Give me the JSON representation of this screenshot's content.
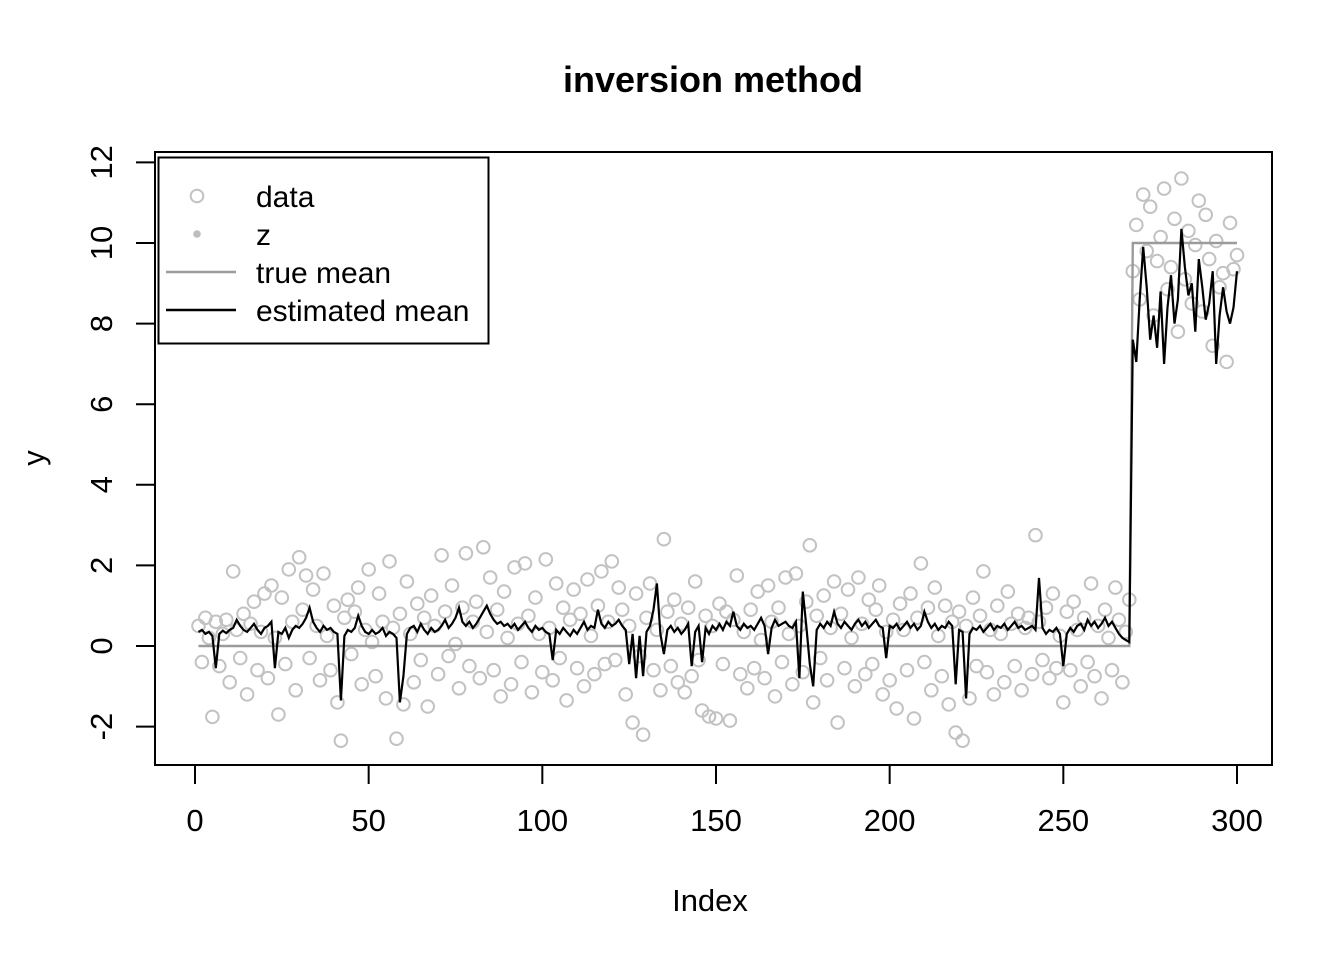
{
  "title": "inversion method",
  "axes": {
    "x_label": "Index",
    "y_label": "y",
    "x_ticks": [
      0,
      50,
      100,
      150,
      200,
      250,
      300
    ],
    "y_ticks": [
      -2,
      0,
      2,
      4,
      6,
      8,
      10,
      12
    ]
  },
  "colors": {
    "background": "#ffffff",
    "data_point": "#c2c2c2",
    "z_point": "#bdbdbd",
    "true_mean": "#9b9b9b",
    "estimated_mean": "#000000",
    "text": "#000000"
  },
  "legend": {
    "items": [
      {
        "label": "data",
        "marker": "open-circle",
        "color": "#c2c2c2"
      },
      {
        "label": "z",
        "marker": "filled-dot",
        "color": "#bdbdbd"
      },
      {
        "label": "true mean",
        "marker": "line",
        "color": "#9b9b9b"
      },
      {
        "label": "estimated mean",
        "marker": "line",
        "color": "#000000"
      }
    ]
  },
  "chart_data": {
    "type": "scatter",
    "title": "inversion method",
    "xlabel": "Index",
    "ylabel": "y",
    "xlim": [
      1,
      300
    ],
    "ylim": [
      -2.4,
      11.6
    ],
    "x_ticks": [
      0,
      50,
      100,
      150,
      200,
      250,
      300
    ],
    "y_ticks": [
      -2,
      0,
      2,
      4,
      6,
      8,
      10,
      12
    ],
    "grid": false,
    "legend_position": "top-left",
    "changepoint_index": 270,
    "series": [
      {
        "name": "data",
        "type": "scatter",
        "marker": "open-circle",
        "color": "#c2c2c2",
        "x_start": 1,
        "y": [
          0.5,
          -0.4,
          0.7,
          0.2,
          -1.76,
          0.6,
          -0.5,
          0.3,
          0.65,
          -0.9,
          1.85,
          0.4,
          -0.3,
          0.8,
          -1.2,
          0.55,
          1.1,
          -0.6,
          0.35,
          1.3,
          -0.8,
          1.5,
          0.2,
          -1.7,
          1.2,
          -0.45,
          1.9,
          0.6,
          -1.1,
          2.2,
          0.9,
          1.75,
          -0.3,
          1.4,
          0.5,
          -0.85,
          1.8,
          0.25,
          -0.6,
          1.0,
          -1.4,
          -2.35,
          0.7,
          1.15,
          -0.2,
          0.85,
          1.45,
          -0.95,
          0.4,
          1.9,
          0.1,
          -0.75,
          1.3,
          0.6,
          -1.3,
          2.1,
          0.45,
          -2.3,
          0.8,
          -1.45,
          1.6,
          0.3,
          -0.9,
          1.05,
          -0.35,
          0.7,
          -1.5,
          1.25,
          0.5,
          -0.7,
          2.25,
          0.85,
          -0.25,
          1.5,
          0.05,
          -1.05,
          0.95,
          2.3,
          -0.5,
          0.6,
          1.1,
          -0.8,
          2.45,
          0.35,
          1.7,
          -0.6,
          0.9,
          -1.25,
          1.35,
          0.2,
          -0.95,
          1.95,
          0.55,
          -0.4,
          2.05,
          0.75,
          -1.15,
          1.2,
          0.3,
          -0.65,
          2.15,
          0.45,
          -0.85,
          1.55,
          -0.3,
          0.95,
          -1.35,
          0.65,
          1.4,
          -0.55,
          0.8,
          -1.0,
          1.65,
          0.25,
          -0.7,
          1.0,
          1.85,
          -0.45,
          0.6,
          2.1,
          -0.35,
          1.45,
          0.9,
          -1.2,
          0.5,
          -1.9,
          1.3,
          -0.25,
          -2.2,
          0.7,
          1.55,
          -0.6,
          0.4,
          -1.1,
          2.65,
          0.85,
          -0.5,
          1.15,
          -0.9,
          0.55,
          -1.15,
          0.95,
          -0.75,
          1.6,
          -0.35,
          -1.6,
          0.75,
          -1.75,
          0.5,
          -1.8,
          1.05,
          -0.45,
          0.85,
          -1.85,
          0.65,
          1.75,
          -0.7,
          0.35,
          -1.05,
          0.9,
          -0.55,
          1.35,
          0.15,
          -0.8,
          1.5,
          0.6,
          -1.25,
          0.95,
          -0.4,
          1.7,
          0.3,
          -0.95,
          1.8,
          0.5,
          -0.65,
          1.1,
          2.5,
          -1.4,
          0.75,
          -0.3,
          1.25,
          -0.85,
          0.45,
          1.6,
          -1.9,
          0.8,
          -0.55,
          1.4,
          0.2,
          -1.0,
          1.7,
          0.55,
          -0.7,
          1.15,
          -0.45,
          0.9,
          1.5,
          -1.2,
          0.35,
          -0.85,
          0.65,
          -1.55,
          1.05,
          0.4,
          -0.6,
          1.3,
          -1.8,
          0.7,
          2.05,
          -0.4,
          0.95,
          -1.1,
          1.45,
          0.25,
          -0.75,
          1.0,
          -1.45,
          0.6,
          -2.15,
          0.85,
          -2.35,
          0.5,
          -1.3,
          1.2,
          -0.5,
          0.75,
          1.85,
          -0.65,
          0.4,
          -1.2,
          1.0,
          0.3,
          -0.9,
          1.35,
          0.55,
          -0.5,
          0.8,
          -1.1,
          0.45,
          0.7,
          -0.7,
          2.75,
          0.6,
          -0.35,
          0.95,
          -0.8,
          1.3,
          -0.55,
          0.25,
          -1.4,
          0.85,
          -0.6,
          1.1,
          0.4,
          -1.0,
          0.7,
          -0.4,
          1.55,
          -0.75,
          0.5,
          -1.3,
          0.9,
          0.2,
          -0.6,
          1.45,
          0.65,
          -0.9,
          0.35,
          1.15,
          9.3,
          10.45,
          8.6,
          11.2,
          9.8,
          10.9,
          8.2,
          9.55,
          10.15,
          11.35,
          8.85,
          9.4,
          10.6,
          7.8,
          11.6,
          9.1,
          10.3,
          8.5,
          9.95,
          11.05,
          8.3,
          10.7,
          9.6,
          7.45,
          10.05,
          8.9,
          9.25,
          7.05,
          10.5,
          9.35,
          9.7
        ]
      },
      {
        "name": "z",
        "type": "scatter",
        "marker": "filled-dot",
        "color": "#bdbdbd",
        "x_start": 1,
        "y": []
      },
      {
        "name": "true mean",
        "type": "line",
        "color": "#9b9b9b",
        "x": [
          1,
          269,
          270,
          300
        ],
        "y": [
          0,
          0,
          10,
          10
        ]
      },
      {
        "name": "estimated mean",
        "type": "line",
        "color": "#000000",
        "x_start": 1,
        "y": [
          0.35,
          0.4,
          0.3,
          0.35,
          0.25,
          -0.55,
          0.3,
          0.38,
          0.32,
          0.4,
          0.45,
          0.65,
          0.5,
          0.4,
          0.35,
          0.45,
          0.55,
          0.4,
          0.3,
          0.45,
          0.5,
          0.6,
          -0.55,
          0.35,
          0.3,
          0.45,
          0.2,
          0.4,
          0.5,
          0.45,
          0.55,
          0.7,
          0.95,
          0.6,
          0.45,
          0.35,
          0.5,
          0.4,
          0.45,
          0.35,
          0.3,
          -1.35,
          0.25,
          0.4,
          0.35,
          0.45,
          0.75,
          0.5,
          0.35,
          0.3,
          0.4,
          0.3,
          0.35,
          0.45,
          0.25,
          0.35,
          0.3,
          0.2,
          -1.4,
          -0.75,
          0.3,
          0.45,
          0.5,
          0.35,
          0.55,
          0.4,
          0.3,
          0.45,
          0.35,
          0.4,
          0.5,
          0.65,
          0.45,
          0.55,
          0.7,
          0.95,
          0.6,
          0.5,
          0.6,
          0.45,
          0.55,
          0.7,
          0.85,
          1.0,
          0.8,
          0.65,
          0.55,
          0.6,
          0.5,
          0.55,
          0.45,
          0.55,
          0.4,
          0.5,
          0.6,
          0.45,
          0.35,
          0.5,
          0.4,
          0.45,
          0.35,
          0.3,
          -0.35,
          0.4,
          0.3,
          0.45,
          0.35,
          0.25,
          0.4,
          0.3,
          0.45,
          0.6,
          0.4,
          0.5,
          0.45,
          0.9,
          0.55,
          0.45,
          0.6,
          0.5,
          0.55,
          0.65,
          0.5,
          0.4,
          -0.45,
          0.3,
          -0.8,
          0.25,
          -0.75,
          0.35,
          0.5,
          0.9,
          1.55,
          0.3,
          -0.2,
          0.4,
          0.5,
          0.35,
          0.45,
          0.3,
          0.4,
          0.55,
          -0.5,
          0.35,
          0.5,
          -0.4,
          0.45,
          0.3,
          0.5,
          0.4,
          0.55,
          0.4,
          0.6,
          0.5,
          0.85,
          0.5,
          0.4,
          0.55,
          0.45,
          0.5,
          0.4,
          0.55,
          0.7,
          0.5,
          -0.2,
          0.45,
          0.65,
          0.5,
          0.55,
          0.6,
          0.5,
          0.45,
          0.6,
          -0.8,
          1.35,
          0.5,
          -0.45,
          -1.0,
          0.4,
          0.55,
          0.45,
          0.6,
          0.5,
          0.85,
          0.55,
          0.45,
          0.6,
          0.5,
          0.4,
          0.55,
          0.65,
          0.5,
          0.6,
          0.45,
          0.55,
          0.65,
          0.5,
          0.45,
          -0.3,
          0.5,
          0.45,
          0.55,
          0.4,
          0.5,
          0.6,
          0.45,
          0.55,
          0.4,
          0.5,
          0.85,
          0.6,
          0.45,
          0.55,
          0.4,
          0.5,
          0.45,
          0.6,
          0.5,
          -0.95,
          0.4,
          0.35,
          -1.3,
          0.3,
          0.45,
          0.4,
          0.5,
          0.35,
          0.45,
          0.55,
          0.4,
          0.5,
          0.45,
          0.55,
          0.4,
          0.5,
          0.6,
          0.45,
          0.5,
          0.4,
          0.45,
          0.5,
          0.4,
          1.69,
          0.45,
          0.3,
          0.4,
          0.35,
          0.45,
          0.3,
          -0.5,
          0.3,
          0.45,
          0.35,
          0.5,
          0.55,
          0.4,
          0.65,
          0.5,
          0.6,
          0.45,
          0.55,
          0.7,
          0.5,
          0.6,
          0.45,
          0.3,
          0.2,
          0.15,
          0.1,
          7.6,
          7.05,
          8.6,
          9.9,
          8.9,
          7.6,
          8.2,
          7.4,
          8.8,
          7.0,
          8.4,
          9.2,
          8.0,
          8.6,
          10.35,
          9.4,
          8.7,
          9.0,
          7.8,
          9.6,
          8.9,
          8.1,
          8.5,
          9.3,
          7.0,
          8.2,
          8.9,
          8.3,
          8.0,
          8.4,
          9.3
        ]
      }
    ]
  }
}
